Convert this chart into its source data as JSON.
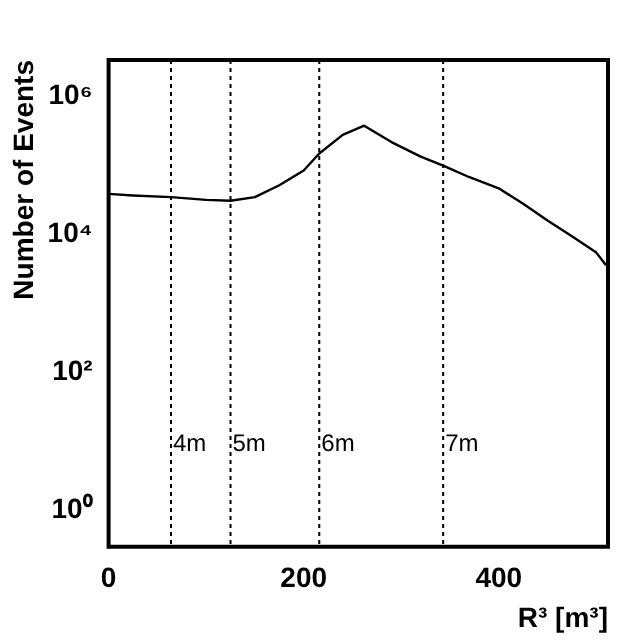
{
  "chart_data": {
    "type": "line",
    "xlabel": "R³ [m³]",
    "ylabel": "Number of Events",
    "x": [
      0,
      25,
      64,
      100,
      125,
      150,
      175,
      200,
      216,
      240,
      262,
      290,
      320,
      343,
      370,
      400,
      425,
      450,
      475,
      500,
      510
    ],
    "values": [
      39000,
      37000,
      35000,
      32000,
      31000,
      35000,
      52000,
      85000,
      150000,
      280000,
      380000,
      220000,
      135000,
      100000,
      68000,
      47000,
      28000,
      16000,
      9500,
      5500,
      3600
    ],
    "color": "#000000",
    "log": "y",
    "xlim": [
      0,
      512
    ],
    "ylim": [
      0.3,
      3400000
    ],
    "xticks": [
      0,
      200,
      400
    ],
    "yticks": [
      {
        "value": 1,
        "label": "10⁰"
      },
      {
        "value": 100,
        "label": "10²"
      },
      {
        "value": 10000,
        "label": "10⁴"
      },
      {
        "value": 1000000,
        "label": "10⁶"
      }
    ],
    "grid": false,
    "legend": false,
    "marker": "none",
    "line_style": "solid",
    "ref_lines": [
      {
        "axis": "x",
        "value": 64,
        "label": "4m",
        "line_style": "dotted"
      },
      {
        "axis": "x",
        "value": 125,
        "label": "5m",
        "line_style": "dotted"
      },
      {
        "axis": "x",
        "value": 216,
        "label": "6m",
        "line_style": "dotted"
      },
      {
        "axis": "x",
        "value": 343,
        "label": "7m",
        "line_style": "dotted"
      }
    ]
  }
}
